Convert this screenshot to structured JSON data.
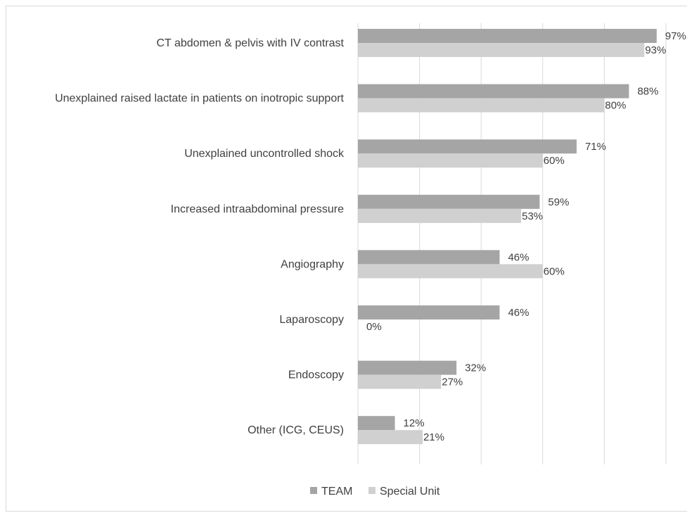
{
  "chart_data": {
    "type": "bar",
    "orientation": "horizontal",
    "categories": [
      "CT abdomen & pelvis with IV contrast",
      "Unexplained raised lactate in patients on inotropic support",
      "Unexplained uncontrolled shock",
      "Increased intraabdominal pressure",
      "Angiography",
      "Laparoscopy",
      "Endoscopy",
      "Other (ICG, CEUS)"
    ],
    "series": [
      {
        "name": "TEAM",
        "color": "#a5a5a5",
        "values": [
          97,
          88,
          71,
          59,
          46,
          46,
          32,
          12
        ],
        "labels": [
          "97%",
          "88%",
          "71%",
          "59%",
          "46%",
          "46%",
          "32%",
          "12%"
        ]
      },
      {
        "name": "Special Unit",
        "color": "#d0d0d0",
        "values": [
          93,
          80,
          60,
          53,
          60,
          0,
          27,
          21
        ],
        "labels": [
          "93%",
          "80%",
          "60%",
          "53%",
          "60%",
          "0%",
          "27%",
          "21%"
        ]
      }
    ],
    "xlim": [
      0,
      100
    ],
    "x_gridlines": [
      0,
      20,
      40,
      60,
      80,
      100
    ],
    "grid": true,
    "legend": "bottom",
    "title": "",
    "xlabel": "",
    "ylabel": ""
  }
}
